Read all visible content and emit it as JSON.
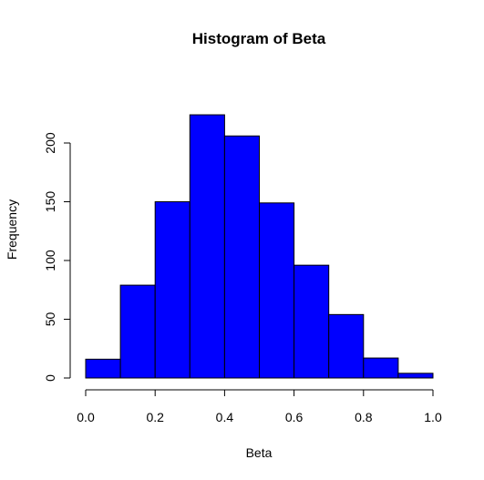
{
  "chart_data": {
    "type": "bar",
    "title": "Histogram of Beta",
    "xlabel": "Beta",
    "ylabel": "Frequency",
    "bin_edges": [
      0.0,
      0.1,
      0.2,
      0.3,
      0.4,
      0.5,
      0.6,
      0.7,
      0.8,
      0.9,
      1.0
    ],
    "values": [
      16,
      79,
      150,
      224,
      206,
      149,
      96,
      54,
      17,
      4
    ],
    "xlim": [
      0.0,
      1.0
    ],
    "ylim": [
      0,
      224
    ],
    "x_ticks": [
      "0.0",
      "0.2",
      "0.4",
      "0.6",
      "0.8",
      "1.0"
    ],
    "y_ticks": [
      "0",
      "50",
      "100",
      "150",
      "200"
    ],
    "bar_color": "#0000ff",
    "grid": false
  }
}
